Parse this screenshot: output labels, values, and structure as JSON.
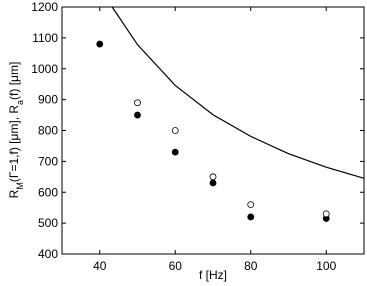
{
  "chart_data": {
    "type": "scatter",
    "xlabel": "f [Hz]",
    "ylabel_parts": [
      {
        "text": "R"
      },
      {
        "text": "M",
        "sub": true
      },
      {
        "text": "(Γ=1,f) [μm], R"
      },
      {
        "text": "a",
        "sub": true
      },
      {
        "text": "(f) [μm]"
      }
    ],
    "xlim": [
      30,
      110
    ],
    "xticks": [
      40,
      60,
      80,
      100
    ],
    "ylim": [
      400,
      1200
    ],
    "yticks": [
      400,
      500,
      600,
      700,
      800,
      900,
      1000,
      1100,
      1200
    ],
    "series": [
      {
        "marker": "filled",
        "color": "#000000",
        "x": [
          40,
          50,
          60,
          70,
          80,
          100
        ],
        "values": [
          1080,
          850,
          730,
          630,
          520,
          515
        ]
      },
      {
        "marker": "open",
        "color": "#000000",
        "x": [
          50,
          60,
          70,
          80,
          100
        ],
        "values": [
          890,
          800,
          650,
          560,
          530
        ]
      },
      {
        "marker": "line",
        "color": "#000000",
        "x": [
          43.3,
          50,
          60,
          70,
          80,
          90,
          100,
          110
        ],
        "values": [
          1200,
          1078,
          946,
          851,
          781,
          725,
          681,
          645
        ]
      }
    ]
  }
}
